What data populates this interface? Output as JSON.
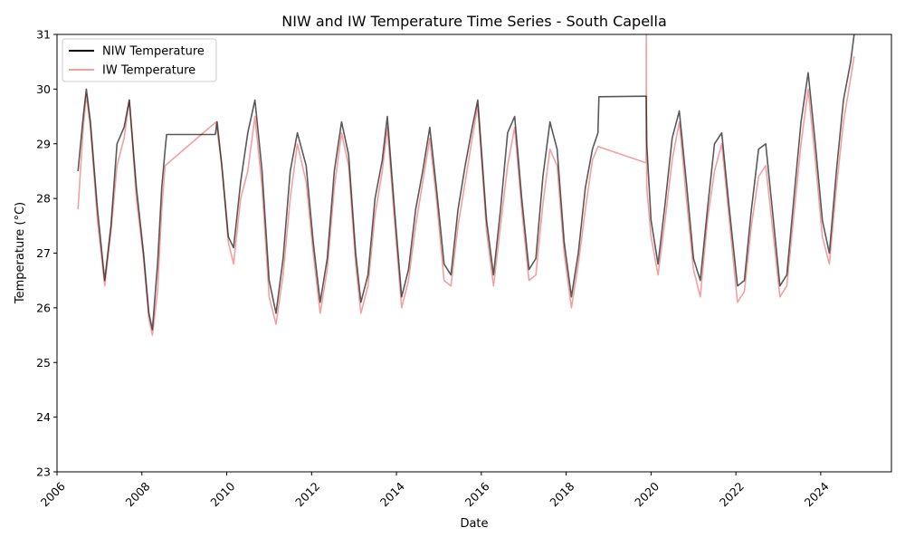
{
  "chart_data": {
    "type": "line",
    "title": "NIW and IW Temperature Time Series - South Capella",
    "xlabel": "Date",
    "ylabel": "Temperature (°C)",
    "xlim": [
      "2006-01-01",
      "2025-09-01"
    ],
    "ylim": [
      23,
      31
    ],
    "x_ticks": [
      "2006",
      "2008",
      "2010",
      "2012",
      "2014",
      "2016",
      "2018",
      "2020",
      "2022",
      "2024"
    ],
    "y_ticks": [
      "23",
      "24",
      "25",
      "26",
      "27",
      "28",
      "29",
      "30",
      "31"
    ],
    "legend_position": "top-left",
    "grid": false,
    "series": [
      {
        "name": "NIW Temperature",
        "color": "#000000",
        "points": [
          [
            "2006-07-01",
            28.5
          ],
          [
            "2006-08-15",
            29.5
          ],
          [
            "2006-09-10",
            30.0
          ],
          [
            "2006-10-15",
            29.4
          ],
          [
            "2006-12-15",
            27.8
          ],
          [
            "2007-02-15",
            26.5
          ],
          [
            "2007-04-10",
            27.5
          ],
          [
            "2007-06-01",
            29.0
          ],
          [
            "2007-08-01",
            29.3
          ],
          [
            "2007-09-15",
            29.8
          ],
          [
            "2007-11-15",
            28.2
          ],
          [
            "2008-01-15",
            27.0
          ],
          [
            "2008-03-01",
            25.9
          ],
          [
            "2008-04-01",
            25.6
          ],
          [
            "2008-05-15",
            26.8
          ],
          [
            "2008-06-20",
            28.2
          ],
          [
            "2008-07-20",
            28.9
          ],
          [
            "2008-08-01",
            29.17
          ],
          [
            "2009-09-25",
            29.17
          ],
          [
            "2009-10-10",
            29.4
          ],
          [
            "2009-11-20",
            28.6
          ],
          [
            "2010-01-15",
            27.3
          ],
          [
            "2010-03-01",
            27.1
          ],
          [
            "2010-05-01",
            28.3
          ],
          [
            "2010-07-01",
            29.2
          ],
          [
            "2010-09-01",
            29.8
          ],
          [
            "2010-11-01",
            28.5
          ],
          [
            "2011-01-01",
            26.5
          ],
          [
            "2011-03-01",
            25.9
          ],
          [
            "2011-05-01",
            26.9
          ],
          [
            "2011-07-01",
            28.5
          ],
          [
            "2011-09-01",
            29.2
          ],
          [
            "2011-11-15",
            28.6
          ],
          [
            "2012-01-15",
            27.2
          ],
          [
            "2012-03-15",
            26.1
          ],
          [
            "2012-05-15",
            26.9
          ],
          [
            "2012-07-15",
            28.5
          ],
          [
            "2012-09-15",
            29.4
          ],
          [
            "2012-11-15",
            28.8
          ],
          [
            "2013-01-15",
            27.0
          ],
          [
            "2013-03-01",
            26.1
          ],
          [
            "2013-05-01",
            26.6
          ],
          [
            "2013-07-01",
            28.0
          ],
          [
            "2013-09-01",
            28.7
          ],
          [
            "2013-10-15",
            29.5
          ],
          [
            "2013-12-15",
            27.8
          ],
          [
            "2014-02-15",
            26.2
          ],
          [
            "2014-04-15",
            26.7
          ],
          [
            "2014-06-15",
            27.8
          ],
          [
            "2014-08-15",
            28.5
          ],
          [
            "2014-10-15",
            29.3
          ],
          [
            "2014-12-15",
            28.1
          ],
          [
            "2015-02-15",
            26.8
          ],
          [
            "2015-04-15",
            26.6
          ],
          [
            "2015-06-15",
            27.8
          ],
          [
            "2015-08-15",
            28.6
          ],
          [
            "2015-10-15",
            29.3
          ],
          [
            "2015-12-01",
            29.8
          ],
          [
            "2016-02-15",
            27.6
          ],
          [
            "2016-04-15",
            26.6
          ],
          [
            "2016-06-15",
            27.8
          ],
          [
            "2016-08-15",
            29.2
          ],
          [
            "2016-10-15",
            29.5
          ],
          [
            "2016-12-15",
            28.0
          ],
          [
            "2017-02-15",
            26.7
          ],
          [
            "2017-04-15",
            26.9
          ],
          [
            "2017-06-15",
            28.4
          ],
          [
            "2017-08-15",
            29.4
          ],
          [
            "2017-10-15",
            28.9
          ],
          [
            "2017-12-15",
            27.2
          ],
          [
            "2018-02-15",
            26.2
          ],
          [
            "2018-04-15",
            27.0
          ],
          [
            "2018-06-15",
            28.2
          ],
          [
            "2018-08-15",
            28.9
          ],
          [
            "2018-10-01",
            29.2
          ],
          [
            "2018-10-10",
            29.86
          ],
          [
            "2019-11-20",
            29.87
          ],
          [
            "2019-11-25",
            29.0
          ],
          [
            "2020-01-01",
            27.6
          ],
          [
            "2020-03-01",
            26.8
          ],
          [
            "2020-05-01",
            27.9
          ],
          [
            "2020-07-01",
            29.1
          ],
          [
            "2020-09-01",
            29.6
          ],
          [
            "2020-11-01",
            28.3
          ],
          [
            "2021-01-01",
            26.9
          ],
          [
            "2021-03-01",
            26.5
          ],
          [
            "2021-05-01",
            27.8
          ],
          [
            "2021-07-01",
            29.0
          ],
          [
            "2021-09-01",
            29.2
          ],
          [
            "2021-11-01",
            27.9
          ],
          [
            "2022-01-15",
            26.4
          ],
          [
            "2022-03-15",
            26.5
          ],
          [
            "2022-05-15",
            27.8
          ],
          [
            "2022-07-15",
            28.9
          ],
          [
            "2022-09-15",
            29.0
          ],
          [
            "2022-11-15",
            27.7
          ],
          [
            "2023-01-15",
            26.4
          ],
          [
            "2023-03-15",
            26.6
          ],
          [
            "2023-05-15",
            28.0
          ],
          [
            "2023-07-15",
            29.4
          ],
          [
            "2023-09-15",
            30.3
          ],
          [
            "2023-11-15",
            29.0
          ],
          [
            "2024-01-15",
            27.6
          ],
          [
            "2024-03-15",
            27.0
          ],
          [
            "2024-05-15",
            28.5
          ],
          [
            "2024-07-15",
            29.8
          ],
          [
            "2024-09-15",
            30.5
          ],
          [
            "2024-10-15",
            31.0
          ]
        ]
      },
      {
        "name": "IW Temperature",
        "color": "#f08080",
        "points": [
          [
            "2006-07-01",
            27.8
          ],
          [
            "2006-08-15",
            29.3
          ],
          [
            "2006-09-10",
            29.9
          ],
          [
            "2006-10-15",
            29.3
          ],
          [
            "2006-12-15",
            27.6
          ],
          [
            "2007-02-15",
            26.4
          ],
          [
            "2007-04-10",
            27.4
          ],
          [
            "2007-06-01",
            28.6
          ],
          [
            "2007-08-01",
            29.1
          ],
          [
            "2007-09-15",
            29.8
          ],
          [
            "2007-11-15",
            28.0
          ],
          [
            "2008-01-15",
            26.9
          ],
          [
            "2008-03-01",
            25.8
          ],
          [
            "2008-04-01",
            25.5
          ],
          [
            "2008-05-15",
            26.3
          ],
          [
            "2008-06-20",
            27.8
          ],
          [
            "2008-07-20",
            28.6
          ],
          [
            "2009-10-01",
            29.4
          ],
          [
            "2009-11-20",
            28.6
          ],
          [
            "2010-01-15",
            27.2
          ],
          [
            "2010-03-01",
            26.8
          ],
          [
            "2010-05-01",
            28.0
          ],
          [
            "2010-07-01",
            28.5
          ],
          [
            "2010-09-01",
            29.5
          ],
          [
            "2010-11-01",
            28.2
          ],
          [
            "2011-01-01",
            26.2
          ],
          [
            "2011-03-01",
            25.7
          ],
          [
            "2011-05-01",
            26.6
          ],
          [
            "2011-07-01",
            28.0
          ],
          [
            "2011-09-01",
            29.0
          ],
          [
            "2011-11-15",
            28.3
          ],
          [
            "2012-01-15",
            27.0
          ],
          [
            "2012-03-15",
            25.9
          ],
          [
            "2012-05-15",
            26.7
          ],
          [
            "2012-07-15",
            28.2
          ],
          [
            "2012-09-15",
            29.2
          ],
          [
            "2012-11-15",
            28.6
          ],
          [
            "2013-01-15",
            26.8
          ],
          [
            "2013-03-01",
            25.9
          ],
          [
            "2013-05-01",
            26.4
          ],
          [
            "2013-07-01",
            27.7
          ],
          [
            "2013-09-01",
            28.5
          ],
          [
            "2013-10-15",
            29.3
          ],
          [
            "2013-12-15",
            27.6
          ],
          [
            "2014-02-15",
            26.0
          ],
          [
            "2014-04-15",
            26.5
          ],
          [
            "2014-06-15",
            27.5
          ],
          [
            "2014-08-15",
            28.3
          ],
          [
            "2014-10-15",
            29.1
          ],
          [
            "2014-12-15",
            27.9
          ],
          [
            "2015-02-15",
            26.5
          ],
          [
            "2015-04-15",
            26.4
          ],
          [
            "2015-06-15",
            27.5
          ],
          [
            "2015-08-15",
            28.3
          ],
          [
            "2015-10-15",
            29.1
          ],
          [
            "2015-12-01",
            29.7
          ],
          [
            "2016-02-15",
            27.4
          ],
          [
            "2016-04-15",
            26.4
          ],
          [
            "2016-06-15",
            27.5
          ],
          [
            "2016-08-15",
            28.6
          ],
          [
            "2016-10-15",
            29.3
          ],
          [
            "2016-12-15",
            27.8
          ],
          [
            "2017-02-15",
            26.5
          ],
          [
            "2017-04-15",
            26.6
          ],
          [
            "2017-06-15",
            27.9
          ],
          [
            "2017-08-15",
            28.9
          ],
          [
            "2017-10-15",
            28.6
          ],
          [
            "2017-12-15",
            27.0
          ],
          [
            "2018-02-15",
            26.0
          ],
          [
            "2018-04-15",
            26.8
          ],
          [
            "2018-06-15",
            27.8
          ],
          [
            "2018-08-15",
            28.7
          ],
          [
            "2018-10-01",
            28.95
          ],
          [
            "2019-11-20",
            28.65
          ],
          [
            "2019-11-22",
            31.0
          ],
          [
            "2019-11-25",
            28.2
          ],
          [
            "2020-01-01",
            27.3
          ],
          [
            "2020-03-01",
            26.6
          ],
          [
            "2020-05-01",
            27.6
          ],
          [
            "2020-07-01",
            28.7
          ],
          [
            "2020-09-01",
            29.4
          ],
          [
            "2020-11-01",
            28.0
          ],
          [
            "2021-01-01",
            26.7
          ],
          [
            "2021-03-01",
            26.2
          ],
          [
            "2021-05-01",
            27.6
          ],
          [
            "2021-07-01",
            28.5
          ],
          [
            "2021-09-01",
            29.0
          ],
          [
            "2021-11-01",
            27.7
          ],
          [
            "2022-01-15",
            26.1
          ],
          [
            "2022-03-15",
            26.3
          ],
          [
            "2022-05-15",
            27.5
          ],
          [
            "2022-07-15",
            28.4
          ],
          [
            "2022-09-15",
            28.6
          ],
          [
            "2022-11-15",
            27.4
          ],
          [
            "2023-01-15",
            26.2
          ],
          [
            "2023-03-15",
            26.4
          ],
          [
            "2023-05-15",
            27.7
          ],
          [
            "2023-07-15",
            29.0
          ],
          [
            "2023-09-15",
            30.0
          ],
          [
            "2023-11-15",
            28.7
          ],
          [
            "2024-01-15",
            27.3
          ],
          [
            "2024-03-15",
            26.8
          ],
          [
            "2024-05-15",
            28.2
          ],
          [
            "2024-07-15",
            29.4
          ],
          [
            "2024-09-15",
            30.2
          ],
          [
            "2024-10-15",
            30.6
          ]
        ]
      }
    ]
  }
}
